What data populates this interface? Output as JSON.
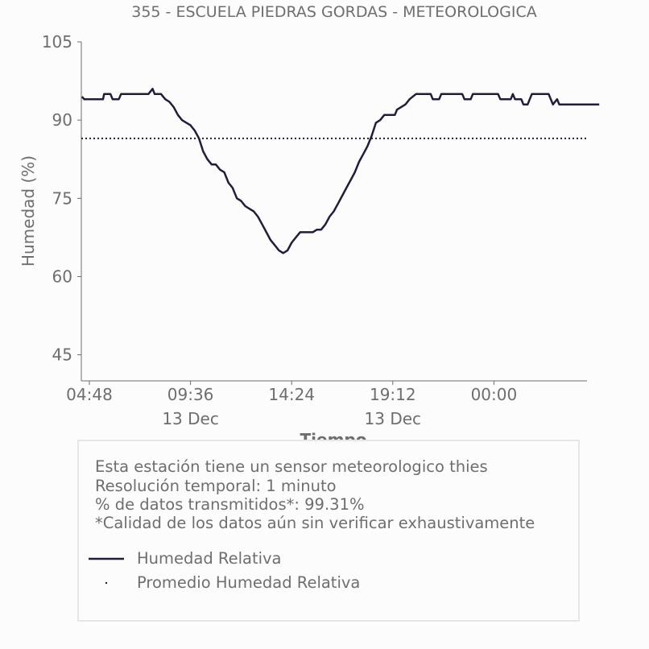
{
  "chart_data": {
    "type": "line",
    "title": "355 - ESCUELA PIEDRAS GORDAS - METEOROLOGICA",
    "xlabel": "Tiempo",
    "ylabel": "Humedad (%)",
    "ylim": [
      40,
      105
    ],
    "y_ticks": [
      105,
      90,
      75,
      60,
      45
    ],
    "x_ticks": [
      {
        "label": "04:48",
        "sublabel": "",
        "hour": 4.8
      },
      {
        "label": "09:36",
        "sublabel": "13 Dec",
        "hour": 9.6
      },
      {
        "label": "14:24",
        "sublabel": "",
        "hour": 14.4
      },
      {
        "label": "19:12",
        "sublabel": "13 Dec",
        "hour": 19.2
      },
      {
        "label": "00:00",
        "sublabel": "",
        "hour": 24.0
      }
    ],
    "series": [
      {
        "name": "Humedad Relativa",
        "color": "#1f1f3d",
        "style": "solid",
        "points": [
          [
            4.45,
            94.5
          ],
          [
            4.55,
            94
          ],
          [
            5.2,
            94
          ],
          [
            5.45,
            94
          ],
          [
            5.5,
            95
          ],
          [
            5.8,
            95
          ],
          [
            5.9,
            94
          ],
          [
            6.2,
            94
          ],
          [
            6.3,
            95
          ],
          [
            7.0,
            95
          ],
          [
            7.6,
            95
          ],
          [
            7.8,
            96
          ],
          [
            7.9,
            95
          ],
          [
            8.2,
            95
          ],
          [
            8.4,
            94
          ],
          [
            8.6,
            93.5
          ],
          [
            8.8,
            92.5
          ],
          [
            9.0,
            91
          ],
          [
            9.2,
            90
          ],
          [
            9.4,
            89.5
          ],
          [
            9.6,
            89
          ],
          [
            9.8,
            88
          ],
          [
            10.0,
            86.5
          ],
          [
            10.2,
            84
          ],
          [
            10.4,
            82.5
          ],
          [
            10.6,
            81.5
          ],
          [
            10.8,
            81.5
          ],
          [
            11.0,
            80.5
          ],
          [
            11.2,
            80
          ],
          [
            11.4,
            78
          ],
          [
            11.6,
            77
          ],
          [
            11.8,
            75
          ],
          [
            12.0,
            74.5
          ],
          [
            12.2,
            73.5
          ],
          [
            12.4,
            73
          ],
          [
            12.6,
            72.5
          ],
          [
            12.8,
            71.5
          ],
          [
            13.0,
            70
          ],
          [
            13.2,
            68.5
          ],
          [
            13.4,
            67
          ],
          [
            13.6,
            66
          ],
          [
            13.8,
            65
          ],
          [
            14.0,
            64.5
          ],
          [
            14.2,
            65
          ],
          [
            14.4,
            66.5
          ],
          [
            14.6,
            67.5
          ],
          [
            14.8,
            68.5
          ],
          [
            15.0,
            68.5
          ],
          [
            15.2,
            68.5
          ],
          [
            15.4,
            68.5
          ],
          [
            15.6,
            69
          ],
          [
            15.8,
            69
          ],
          [
            16.0,
            70
          ],
          [
            16.2,
            71.5
          ],
          [
            16.4,
            72.5
          ],
          [
            16.6,
            74
          ],
          [
            16.8,
            75.5
          ],
          [
            17.0,
            77
          ],
          [
            17.2,
            78.5
          ],
          [
            17.4,
            80
          ],
          [
            17.6,
            82
          ],
          [
            17.8,
            83.5
          ],
          [
            18.0,
            85
          ],
          [
            18.2,
            87
          ],
          [
            18.4,
            89.5
          ],
          [
            18.6,
            90
          ],
          [
            18.8,
            91
          ],
          [
            19.0,
            91
          ],
          [
            19.3,
            91
          ],
          [
            19.4,
            92
          ],
          [
            19.8,
            93
          ],
          [
            20.0,
            94
          ],
          [
            20.3,
            95
          ],
          [
            21.0,
            95
          ],
          [
            21.1,
            94
          ],
          [
            21.4,
            94
          ],
          [
            21.5,
            95
          ],
          [
            22.5,
            95
          ],
          [
            22.6,
            94
          ],
          [
            22.9,
            94
          ],
          [
            23.0,
            95
          ],
          [
            24.2,
            95
          ],
          [
            24.3,
            94
          ],
          [
            24.8,
            94
          ],
          [
            24.9,
            95
          ],
          [
            25.0,
            94
          ],
          [
            25.3,
            94
          ],
          [
            25.4,
            93
          ],
          [
            25.6,
            93
          ],
          [
            25.7,
            94
          ],
          [
            25.8,
            95
          ],
          [
            26.6,
            95
          ],
          [
            26.7,
            94
          ],
          [
            26.8,
            93
          ],
          [
            27.0,
            94
          ],
          [
            27.1,
            93
          ],
          [
            29.0,
            93
          ]
        ]
      },
      {
        "name": "Promedio Humedad Relativa",
        "color": "#1f1f3d",
        "style": "dotted",
        "value": 86.5
      }
    ]
  },
  "info": {
    "lines": [
      "Esta estación tiene un sensor meteorologico thies",
      "Resolución temporal: 1 minuto",
      "% de datos transmitidos*: 99.31%",
      "*Calidad de los datos aún sin verificar exhaustivamente"
    ]
  },
  "legend": {
    "items": [
      {
        "label": "Humedad Relativa"
      },
      {
        "label": "Promedio Humedad Relativa"
      }
    ]
  },
  "colors": {
    "text": "#6e6e6e",
    "series": "#1f1f3d",
    "box_border": "#e6e6e6"
  }
}
